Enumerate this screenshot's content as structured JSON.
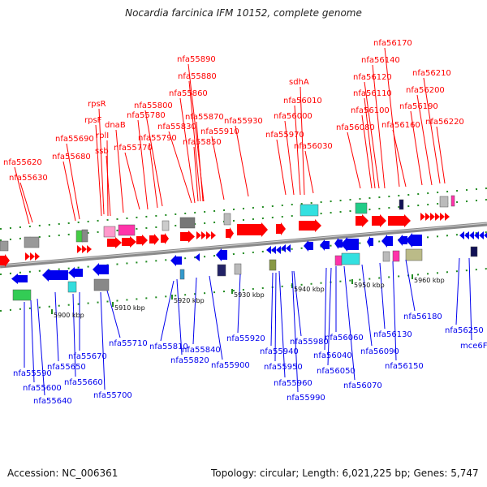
{
  "title": "Nocardia farcinica IFM 10152, complete genome",
  "footer": {
    "accession": "Accession: NC_006361",
    "topology": "Topology: circular; Length: 6,021,225 bp; Genes: 5,747"
  },
  "colors": {
    "forward_gene": "#ff0000",
    "reverse_gene": "#0000ee",
    "backbone": "#8a8a8a",
    "ticks": "#228b22"
  },
  "axis_labels": [
    "5900 kbp",
    "5910 kbp",
    "5920 kbp",
    "5930 kbp",
    "5940 kbp",
    "5950 kbp",
    "5960 kbp"
  ],
  "top_labels": [
    "nfa55620",
    "nfa55630",
    "nfa55680",
    "nfa55690",
    "rpsR",
    "rpsF",
    "rplI",
    "ssb",
    "dnaB",
    "nfa55770",
    "nfa55780",
    "nfa55790",
    "nfa55800",
    "nfa55830",
    "nfa55850",
    "nfa55860",
    "nfa55870",
    "nfa55880",
    "nfa55890",
    "nfa55910",
    "nfa55930",
    "nfa55970",
    "nfa56000",
    "nfa56010",
    "sdhA",
    "nfa56030",
    "nfa56080",
    "nfa56100",
    "nfa56110",
    "nfa56120",
    "nfa56140",
    "nfa56160",
    "nfa56170",
    "nfa56190",
    "nfa56200",
    "nfa56210",
    "nfa56220"
  ],
  "bottom_labels": [
    "nfa55590",
    "nfa55600",
    "nfa55640",
    "nfa55650",
    "nfa55660",
    "nfa55670",
    "nfa55700",
    "nfa55710",
    "nfa55810",
    "nfa55820",
    "nfa55840",
    "nfa55900",
    "nfa55920",
    "nfa55940",
    "nfa55950",
    "nfa55960",
    "nfa55980",
    "nfa55990",
    "nfa56040",
    "nfa56050",
    "nfa56060",
    "nfa56070",
    "nfa56090",
    "nfa56130",
    "nfa56150",
    "nfa56180",
    "nfa56250",
    "mce6F"
  ]
}
